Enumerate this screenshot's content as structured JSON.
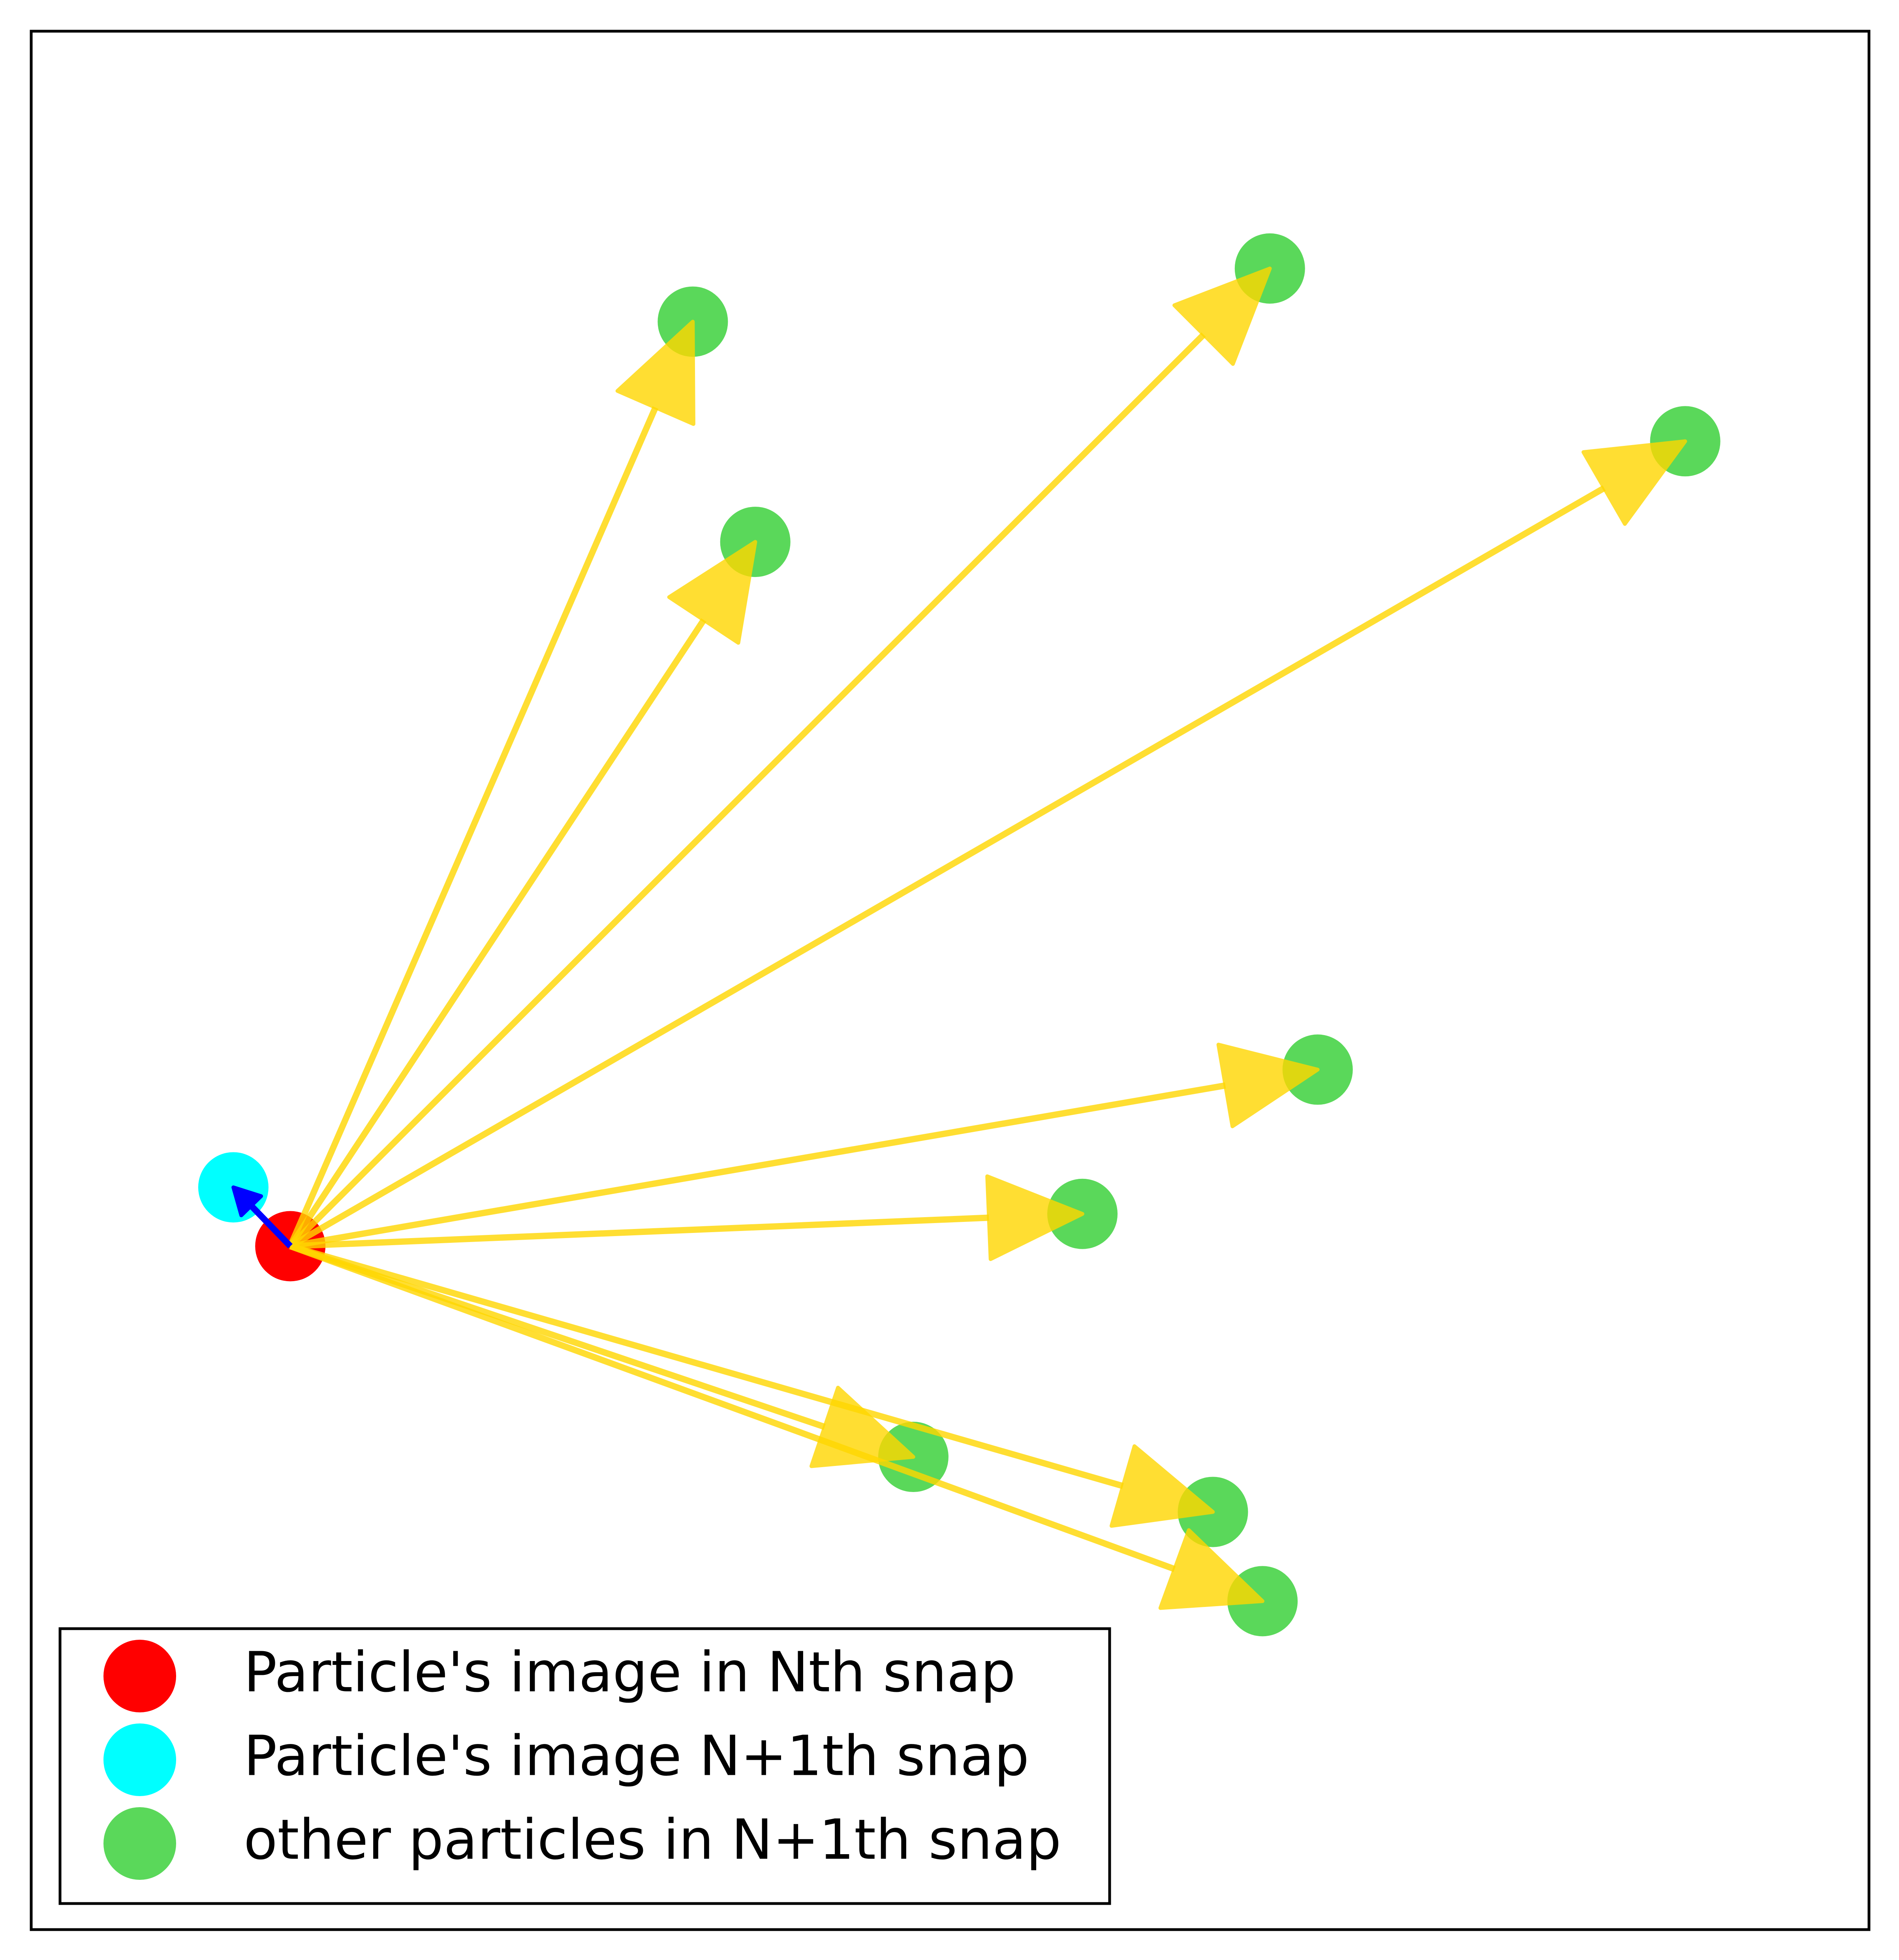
{
  "chart_data": {
    "type": "scatter",
    "xlim": [
      0,
      100
    ],
    "ylim": [
      0,
      100
    ],
    "series": [
      {
        "name": "Particle's image in Nth snap",
        "color": "#ff0000",
        "x": [
          14.1
        ],
        "values": [
          36.0
        ]
      },
      {
        "name": "Particle's image N+1th snap",
        "color": "#00ffff",
        "x": [
          11.0
        ],
        "values": [
          39.1
        ]
      },
      {
        "name": "other particles in N+1th snap",
        "color": "#5ad85a",
        "x": [
          36.0,
          39.4,
          67.4,
          90.0,
          70.0,
          57.2,
          48.0,
          64.3,
          67.0
        ],
        "values": [
          84.7,
          73.1,
          87.5,
          78.4,
          45.3,
          37.7,
          24.9,
          22.0,
          17.3
        ]
      }
    ],
    "arrow_color": "#ffd700",
    "move_arrow_color": "#0000ff",
    "legend": "lower left"
  }
}
